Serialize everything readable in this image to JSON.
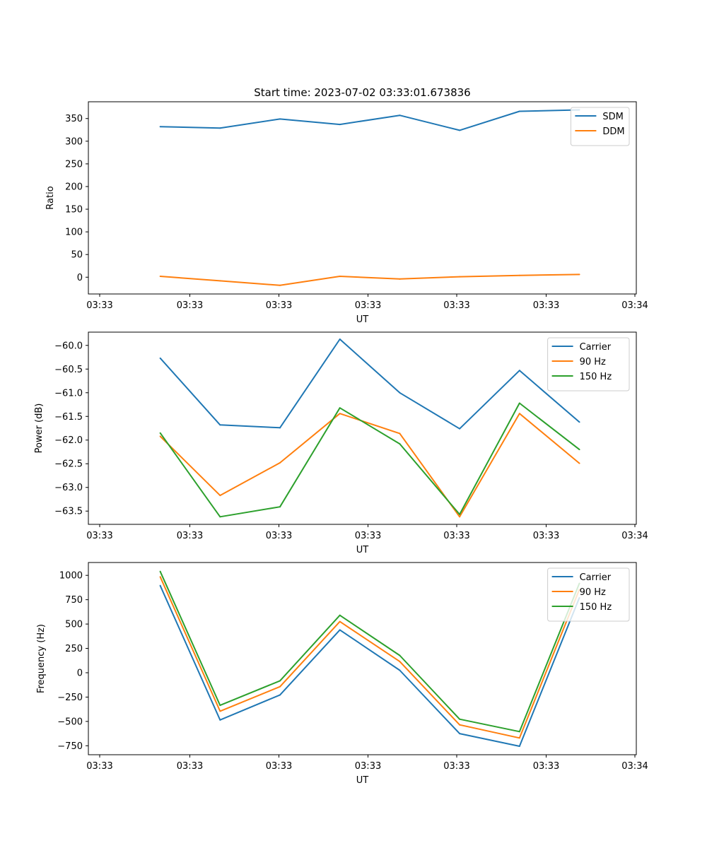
{
  "figure_title": "Start time: 2023-07-02 03:33:01.673836",
  "chart_data": [
    {
      "type": "line",
      "title": "Start time: 2023-07-02 03:33:01.673836",
      "xlabel": "UT",
      "ylabel": "Ratio",
      "x_tick_labels": [
        "03:33",
        "03:33",
        "03:33",
        "03:33",
        "03:33",
        "03:33",
        "03:34"
      ],
      "x": [
        1,
        2,
        3,
        4,
        5,
        6,
        7,
        8
      ],
      "xlim": [
        -0.2,
        8.95
      ],
      "ylim": [
        -37,
        387
      ],
      "yticks": [
        0,
        50,
        100,
        150,
        200,
        250,
        300,
        350
      ],
      "ytick_labels": [
        "0",
        "50",
        "100",
        "150",
        "200",
        "250",
        "300",
        "350"
      ],
      "legend_position": "upper right",
      "series": [
        {
          "name": "SDM",
          "color": "#1f77b4",
          "values": [
            332,
            329,
            349,
            337,
            357,
            324,
            366,
            369
          ]
        },
        {
          "name": "DDM",
          "color": "#ff7f0e",
          "values": [
            2,
            -8,
            -18,
            2,
            -4,
            1,
            4,
            6
          ]
        }
      ]
    },
    {
      "type": "line",
      "title": "",
      "xlabel": "UT",
      "ylabel": "Power (dB)",
      "x_tick_labels": [
        "03:33",
        "03:33",
        "03:33",
        "03:33",
        "03:33",
        "03:33",
        "03:34"
      ],
      "x": [
        1,
        2,
        3,
        4,
        5,
        6,
        7,
        8
      ],
      "xlim": [
        -0.2,
        8.95
      ],
      "ylim": [
        -63.78,
        -59.72
      ],
      "yticks": [
        -63.5,
        -63.0,
        -62.5,
        -62.0,
        -61.5,
        -61.0,
        -60.5,
        -60.0
      ],
      "ytick_labels": [
        "−63.5",
        "−63.0",
        "−62.5",
        "−62.0",
        "−61.5",
        "−61.0",
        "−60.5",
        "−60.0"
      ],
      "legend_position": "upper right",
      "series": [
        {
          "name": "Carrier",
          "color": "#1f77b4",
          "values": [
            -60.27,
            -61.68,
            -61.74,
            -59.87,
            -61.0,
            -61.76,
            -60.53,
            -61.62
          ]
        },
        {
          "name": "90 Hz",
          "color": "#ff7f0e",
          "values": [
            -61.92,
            -63.17,
            -62.48,
            -61.44,
            -61.86,
            -63.62,
            -61.44,
            -62.49
          ]
        },
        {
          "name": "150 Hz",
          "color": "#2ca02c",
          "values": [
            -61.85,
            -63.62,
            -63.41,
            -61.32,
            -62.08,
            -63.57,
            -61.22,
            -62.2
          ]
        }
      ]
    },
    {
      "type": "line",
      "title": "",
      "xlabel": "UT",
      "ylabel": "Frequency (Hz)",
      "x_tick_labels": [
        "03:33",
        "03:33",
        "03:33",
        "03:33",
        "03:33",
        "03:33",
        "03:34"
      ],
      "x": [
        1,
        2,
        3,
        4,
        5,
        6,
        7,
        8
      ],
      "xlim": [
        -0.2,
        8.95
      ],
      "ylim": [
        -842,
        1132
      ],
      "yticks": [
        -750,
        -500,
        -250,
        0,
        250,
        500,
        750,
        1000
      ],
      "ytick_labels": [
        "−750",
        "−500",
        "−250",
        "0",
        "250",
        "500",
        "750",
        "1000"
      ],
      "legend_position": "upper right",
      "series": [
        {
          "name": "Carrier",
          "color": "#1f77b4",
          "values": [
            895,
            -485,
            -228,
            440,
            25,
            -625,
            -755,
            770
          ]
        },
        {
          "name": "90 Hz",
          "color": "#ff7f0e",
          "values": [
            985,
            -395,
            -143,
            525,
            115,
            -535,
            -670,
            855
          ]
        },
        {
          "name": "150 Hz",
          "color": "#2ca02c",
          "values": [
            1040,
            -335,
            -83,
            590,
            178,
            -477,
            -605,
            918
          ]
        }
      ]
    }
  ]
}
